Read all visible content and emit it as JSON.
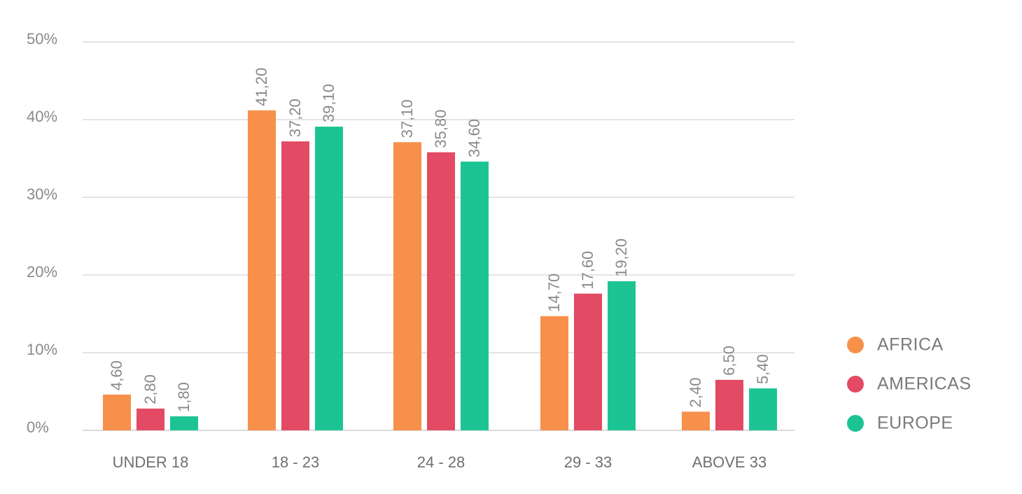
{
  "chart_data": {
    "type": "bar",
    "title": "",
    "xlabel": "",
    "ylabel": "",
    "ylim": [
      0,
      50
    ],
    "y_ticks": [
      {
        "value": 0,
        "label": "0%"
      },
      {
        "value": 10,
        "label": "10%"
      },
      {
        "value": 20,
        "label": "20%"
      },
      {
        "value": 30,
        "label": "30%"
      },
      {
        "value": 40,
        "label": "40%"
      },
      {
        "value": 50,
        "label": "50%"
      }
    ],
    "grid": true,
    "legend_position": "right",
    "categories": [
      "UNDER 18",
      "18 - 23",
      "24 - 28",
      "29 - 33",
      "ABOVE 33"
    ],
    "series": [
      {
        "name": "AFRICA",
        "color": "#f7904a",
        "values": [
          4.6,
          41.2,
          37.1,
          14.7,
          2.4
        ],
        "labels": [
          "4,60",
          "41,20",
          "37,10",
          "14,70",
          "2,40"
        ]
      },
      {
        "name": "AMERICAS",
        "color": "#e34a63",
        "values": [
          2.8,
          37.2,
          35.8,
          17.6,
          6.5
        ],
        "labels": [
          "2,80",
          "37,20",
          "35,80",
          "17,60",
          "6,50"
        ]
      },
      {
        "name": "EUROPE",
        "color": "#1dc493",
        "values": [
          1.8,
          39.1,
          34.6,
          19.2,
          5.4
        ],
        "labels": [
          "1,80",
          "39,10",
          "34,60",
          "19,20",
          "5,40"
        ]
      }
    ]
  }
}
